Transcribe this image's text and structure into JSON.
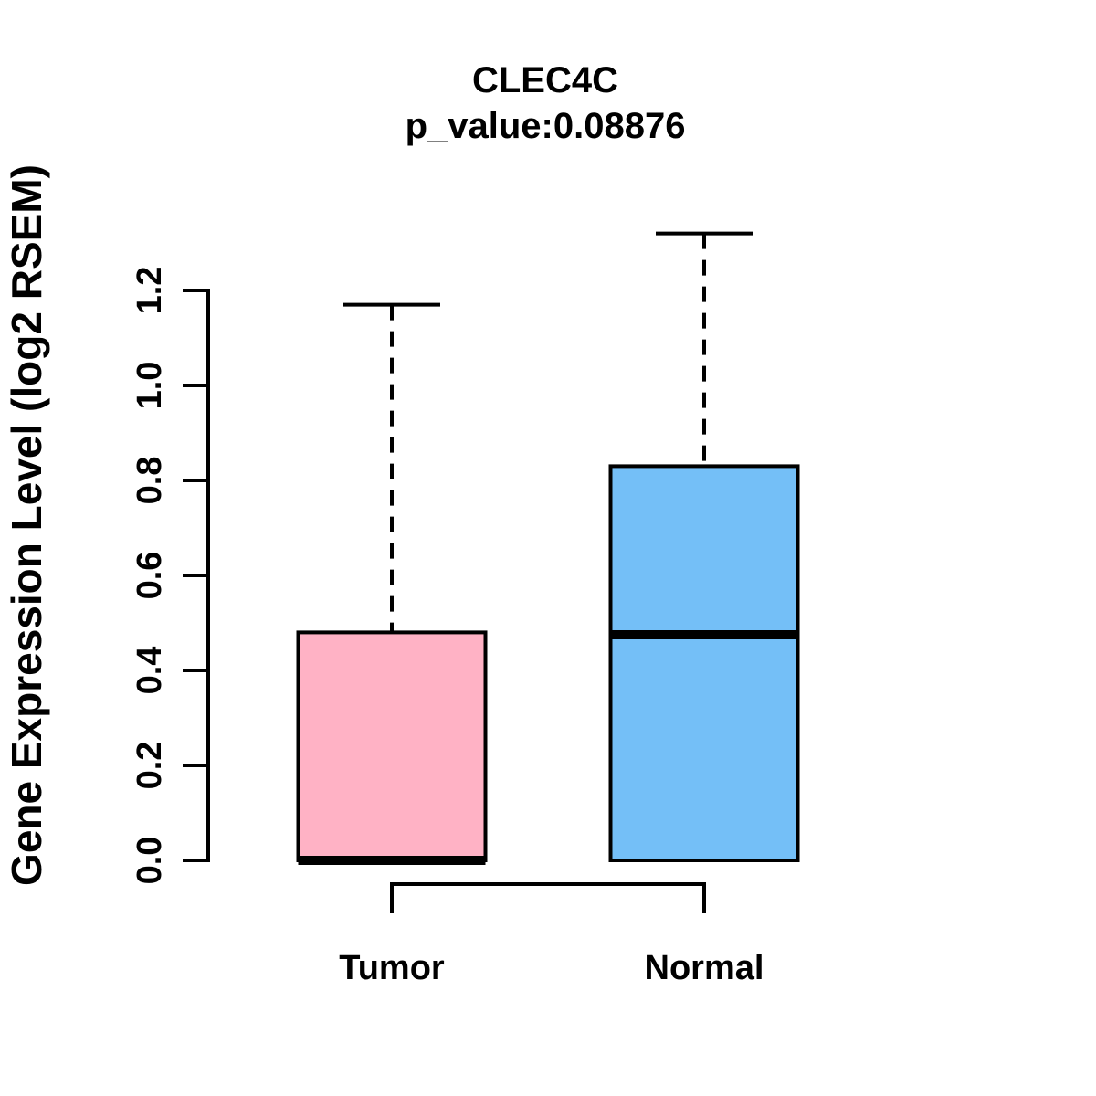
{
  "chart_data": {
    "type": "boxplot",
    "title": "CLEC4C",
    "subtitle": "p_value:0.08876",
    "ylabel": "Gene Expression Level (log2 RSEM)",
    "xlabel": "",
    "categories": [
      "Tumor",
      "Normal"
    ],
    "series": [
      {
        "name": "Tumor",
        "color": "#FFB2C5",
        "whisker_low": 0.0,
        "q1": 0.0,
        "median": 0.0,
        "q3": 0.48,
        "whisker_high": 1.17
      },
      {
        "name": "Normal",
        "color": "#74BFF7",
        "whisker_low": 0.0,
        "q1": 0.0,
        "median": 0.475,
        "q3": 0.83,
        "whisker_high": 1.32
      }
    ],
    "ylim": [
      0,
      1.32
    ],
    "ytick_labels": [
      "0.0",
      "0.2",
      "0.4",
      "0.6",
      "0.8",
      "1.0",
      "1.2"
    ],
    "grid": false,
    "legend": null,
    "stroke_color": "#000000",
    "background": "#FFFFFF",
    "x_axis_style": "bracket-below-connecting-categories",
    "whisker_style": "dashed"
  }
}
